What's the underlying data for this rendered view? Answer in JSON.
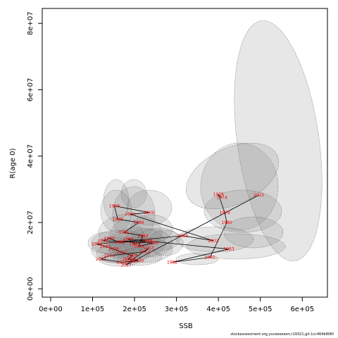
{
  "chart_data": {
    "type": "scatter",
    "xlabel": "SSB",
    "ylabel": "R(age 0)",
    "xlim": [
      -20000,
      660000
    ],
    "ylim": [
      -2500000,
      84500000
    ],
    "xticks": [
      0,
      100000,
      200000,
      300000,
      400000,
      500000,
      600000
    ],
    "xtick_labels": [
      "0e+00",
      "1e+05",
      "2e+05",
      "3e+05",
      "4e+05",
      "5e+05",
      "6e+05"
    ],
    "yticks": [
      0,
      20000000,
      40000000,
      60000000,
      80000000
    ],
    "ytick_labels": [
      "0e+00",
      "2e+07",
      "4e+07",
      "6e+07",
      "8e+07"
    ],
    "series": [
      {
        "points": [
          {
            "label": "1978",
            "x": 400000,
            "y": 28500000
          },
          {
            "label": "2025",
            "x": 497000,
            "y": 28300000
          },
          {
            "label": "1974",
            "x": 408000,
            "y": 27500000
          },
          {
            "label": "1979",
            "x": 415000,
            "y": 23000000
          },
          {
            "label": "1980",
            "x": 420000,
            "y": 20000000
          },
          {
            "label": "2002",
            "x": 388000,
            "y": 14500000
          },
          {
            "label": "1983",
            "x": 425000,
            "y": 12000000
          },
          {
            "label": "1981",
            "x": 380000,
            "y": 9500000
          },
          {
            "label": "1982",
            "x": 290000,
            "y": 8000000
          },
          {
            "label": "2003",
            "x": 315000,
            "y": 16000000
          },
          {
            "label": "1999",
            "x": 152000,
            "y": 25000000
          },
          {
            "label": "2000",
            "x": 235000,
            "y": 23000000
          },
          {
            "label": "2001",
            "x": 190000,
            "y": 22500000
          },
          {
            "label": "1998",
            "x": 160000,
            "y": 21000000
          },
          {
            "label": "1996",
            "x": 210000,
            "y": 20000000
          },
          {
            "label": "1995",
            "x": 175000,
            "y": 17000000
          },
          {
            "label": "1994",
            "x": 220000,
            "y": 16000000
          },
          {
            "label": "1986",
            "x": 185000,
            "y": 15000000
          },
          {
            "label": "1987",
            "x": 200000,
            "y": 13500000
          },
          {
            "label": "1988",
            "x": 230000,
            "y": 14500000
          },
          {
            "label": "1989",
            "x": 165000,
            "y": 14000000
          },
          {
            "label": "1990",
            "x": 140000,
            "y": 15200000
          },
          {
            "label": "1991",
            "x": 125000,
            "y": 14500000
          },
          {
            "label": "1992",
            "x": 245000,
            "y": 13800000
          },
          {
            "label": "1993",
            "x": 210000,
            "y": 12800000
          },
          {
            "label": "2004",
            "x": 110000,
            "y": 13500000
          },
          {
            "label": "2005",
            "x": 130000,
            "y": 12800000
          },
          {
            "label": "2006",
            "x": 150000,
            "y": 12000000
          },
          {
            "label": "2007",
            "x": 170000,
            "y": 11000000
          },
          {
            "label": "2008",
            "x": 195000,
            "y": 10000000
          },
          {
            "label": "2009",
            "x": 185000,
            "y": 9000000
          },
          {
            "label": "2010",
            "x": 210000,
            "y": 8500000
          },
          {
            "label": "2011",
            "x": 170000,
            "y": 8000000
          },
          {
            "label": "2012",
            "x": 120000,
            "y": 9000000
          },
          {
            "label": "2013",
            "x": 140000,
            "y": 10000000
          },
          {
            "label": "2014",
            "x": 225000,
            "y": 11200000
          },
          {
            "label": "2015",
            "x": 235000,
            "y": 12400000
          },
          {
            "label": "2016",
            "x": 190000,
            "y": 8300000
          },
          {
            "label": "2017",
            "x": 180000,
            "y": 7200000
          }
        ]
      }
    ]
  },
  "footer_text": "stockassessment.org,yuceeeeeen,r19321,git:1cc464b806f"
}
